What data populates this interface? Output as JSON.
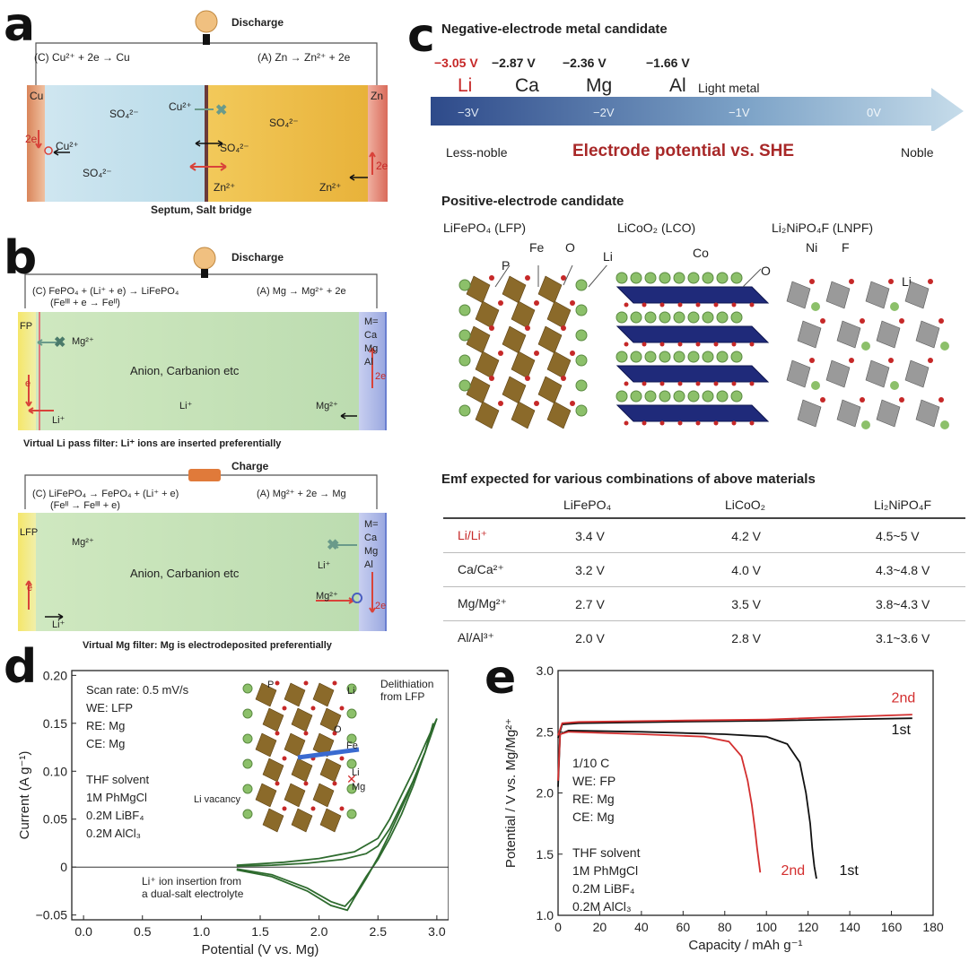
{
  "panel_a": {
    "label": "a",
    "discharge": "Discharge",
    "cathode_reaction": "(C) Cu²⁺ + 2e → Cu",
    "anode_reaction": "(A) Zn → Zn²⁺ + 2e",
    "left_electrode": "Cu",
    "right_electrode": "Zn",
    "sulfate": "SO₄²⁻",
    "cu_ion": "Cu²⁺",
    "zn_ion": "Zn²⁺",
    "electrons": "2e",
    "caption": "Septum, Salt bridge"
  },
  "panel_b": {
    "label": "b",
    "discharge": {
      "title": "Discharge",
      "cathode_reaction": "(C) FePO₄ + (Li⁺ + e) → LiFePO₄",
      "cathode_sub": "(Feᴵᴵᴵ + e → Feᴵᴵ)",
      "anode_reaction": "(A) Mg → Mg²⁺ + 2e",
      "left_electrode": "FP",
      "right_electrode": [
        "M=",
        "Ca",
        "Mg",
        "Al"
      ],
      "electrolyte": "Anion, Carbanion etc",
      "li_ion": "Li⁺",
      "mg_ion": "Mg²⁺",
      "electron": "e",
      "electrons": "2e",
      "caption": "Virtual Li pass filter: Li⁺ ions are inserted preferentially"
    },
    "charge": {
      "title": "Charge",
      "cathode_reaction": "(C) LiFePO₄ → FePO₄ + (Li⁺ + e)",
      "cathode_sub": "(Feᴵᴵ → Feᴵᴵᴵ + e)",
      "anode_reaction": "(A) Mg²⁺ + 2e → Mg",
      "left_electrode": "LFP",
      "right_electrode": [
        "M=",
        "Ca",
        "Mg",
        "Al"
      ],
      "electrolyte": "Anion, Carbanion etc",
      "li_ion": "Li⁺",
      "mg_ion": "Mg²⁺",
      "electron": "e",
      "electrons": "2e",
      "caption": "Virtual Mg filter: Mg is electrodeposited preferentially"
    }
  },
  "panel_c": {
    "label": "c",
    "neg_title": "Negative-electrode metal candidate",
    "metals": [
      {
        "potential": "−3.05 V",
        "symbol": "Li",
        "color": "#c62828"
      },
      {
        "potential": "−2.87 V",
        "symbol": "Ca",
        "color": "#222222"
      },
      {
        "potential": "−2.36 V",
        "symbol": "Mg",
        "color": "#222222"
      },
      {
        "potential": "−1.66 V",
        "symbol": "Al",
        "color": "#222222"
      }
    ],
    "light_metal": "Light metal",
    "scale_ticks": [
      "−3V",
      "−2V",
      "−1V",
      "0V"
    ],
    "less_noble": "Less-noble",
    "noble": "Noble",
    "axis_title": "Electrode potential vs. SHE",
    "pos_title": "Positive-electrode candidate",
    "structures": [
      {
        "name": "LiFePO₄ (LFP)",
        "atoms": [
          "P",
          "Fe",
          "O",
          "Li"
        ]
      },
      {
        "name": "LiCoO₂ (LCO)",
        "atoms": [
          "Co",
          "O"
        ]
      },
      {
        "name": "Li₂NiPO₄F (LNPF)",
        "atoms": [
          "Ni",
          "F",
          "Li"
        ]
      }
    ],
    "emf_title": "Emf expected for various combinations of above materials",
    "emf_columns": [
      "",
      "LiFePO₄",
      "LiCoO₂",
      "Li₂NiPO₄F"
    ],
    "emf_rows": [
      {
        "couple": "Li/Li⁺",
        "values": [
          "3.4 V",
          "4.2 V",
          "4.5~5 V"
        ],
        "highlight": true
      },
      {
        "couple": "Ca/Ca²⁺",
        "values": [
          "3.2 V",
          "4.0 V",
          "4.3~4.8 V"
        ],
        "highlight": false
      },
      {
        "couple": "Mg/Mg²⁺",
        "values": [
          "2.7 V",
          "3.5 V",
          "3.8~4.3 V"
        ],
        "highlight": false
      },
      {
        "couple": "Al/Al³⁺",
        "values": [
          "2.0 V",
          "2.8 V",
          "3.1~3.6 V"
        ],
        "highlight": false
      }
    ]
  },
  "panel_d": {
    "label": "d",
    "conditions": [
      "Scan rate: 0.5 mV/s",
      "WE: LFP",
      "RE: Mg",
      "CE: Mg",
      "",
      "THF solvent",
      "1M PhMgCl",
      "0.2M LiBF₄",
      "0.2M AlCl₃"
    ],
    "inset_labels": {
      "delith": [
        "Delithiation",
        "from LFP"
      ],
      "li": "Li",
      "mg": "Mg",
      "p": "P",
      "o": "O",
      "fe": "Fe",
      "li2": "Li",
      "vacancy": "Li vacancy"
    },
    "insertion_note": [
      "Li⁺ ion insertion from",
      "a dual-salt electrolyte"
    ]
  },
  "panel_e": {
    "label": "e",
    "conditions": [
      "1/10 C",
      "WE: FP",
      "RE: Mg",
      "CE: Mg",
      "",
      "THF solvent",
      "1M PhMgCl",
      "0.2M LiBF₄",
      "0.2M AlCl₃"
    ]
  },
  "chart_data": [
    {
      "type": "line",
      "panel": "d",
      "xlabel": "Potential (V vs. Mg)",
      "ylabel": "Current (A g⁻¹)",
      "xlim": [
        -0.1,
        3.1
      ],
      "ylim": [
        -0.055,
        0.205
      ],
      "xticks": [
        "0.0",
        "0.5",
        "1.0",
        "1.5",
        "2.0",
        "2.5",
        "3.0"
      ],
      "yticks": [
        "−0.05",
        "0",
        "0.05",
        "0.10",
        "0.15",
        "0.20"
      ],
      "series": [
        {
          "color": "#2e6b2e",
          "x": [
            1.3,
            1.6,
            1.9,
            2.2,
            2.4,
            2.5,
            2.6,
            2.7,
            2.8,
            2.9,
            2.97
          ],
          "y": [
            0.001,
            0.002,
            0.004,
            0.008,
            0.014,
            0.022,
            0.04,
            0.065,
            0.09,
            0.12,
            0.15
          ]
        },
        {
          "color": "#2e6b2e",
          "x": [
            2.97,
            2.9,
            2.8,
            2.7,
            2.6,
            2.5,
            2.4,
            2.3,
            2.22,
            2.1,
            1.9,
            1.6,
            1.3
          ],
          "y": [
            0.15,
            0.12,
            0.085,
            0.055,
            0.03,
            0.008,
            -0.01,
            -0.03,
            -0.041,
            -0.036,
            -0.022,
            -0.008,
            -0.002
          ]
        },
        {
          "color": "#2e6b2e",
          "x": [
            1.3,
            1.7,
            2.0,
            2.3,
            2.5,
            2.6,
            2.7,
            2.8,
            2.9,
            3.0
          ],
          "y": [
            0.002,
            0.005,
            0.009,
            0.016,
            0.03,
            0.05,
            0.075,
            0.1,
            0.128,
            0.155
          ]
        },
        {
          "color": "#2e6b2e",
          "x": [
            3.0,
            2.9,
            2.75,
            2.6,
            2.5,
            2.4,
            2.3,
            2.24,
            2.1,
            1.9,
            1.6,
            1.3
          ],
          "y": [
            0.155,
            0.12,
            0.075,
            0.035,
            0.01,
            -0.012,
            -0.032,
            -0.045,
            -0.04,
            -0.025,
            -0.01,
            -0.003
          ]
        }
      ]
    },
    {
      "type": "line",
      "panel": "e",
      "xlabel": "Capacity / mAh g⁻¹",
      "ylabel": "Potential / V vs. Mg/Mg²⁺",
      "xlim": [
        0,
        180
      ],
      "ylim": [
        1.0,
        3.0
      ],
      "xticks": [
        "0",
        "20",
        "40",
        "60",
        "80",
        "100",
        "120",
        "140",
        "160",
        "180"
      ],
      "yticks": [
        "1.0",
        "1.5",
        "2.0",
        "2.5",
        "3.0"
      ],
      "series": [
        {
          "name": "1st",
          "color": "#111111",
          "x": [
            0,
            2,
            10,
            50,
            100,
            170
          ],
          "y": [
            2.45,
            2.56,
            2.57,
            2.58,
            2.59,
            2.61
          ]
        },
        {
          "name": "2nd",
          "color": "#d32f2f",
          "x": [
            0,
            2,
            10,
            50,
            100,
            170
          ],
          "y": [
            2.47,
            2.57,
            2.58,
            2.59,
            2.6,
            2.64
          ]
        },
        {
          "name": "1st",
          "color": "#111111",
          "x": [
            0,
            1,
            5,
            40,
            80,
            100,
            110,
            116,
            119,
            121,
            122,
            123,
            124
          ],
          "y": [
            2.05,
            2.48,
            2.51,
            2.5,
            2.48,
            2.46,
            2.4,
            2.25,
            2.0,
            1.75,
            1.55,
            1.4,
            1.3
          ]
        },
        {
          "name": "2nd",
          "color": "#d32f2f",
          "x": [
            0,
            1,
            5,
            40,
            70,
            82,
            88,
            91,
            93,
            94.5,
            95.5,
            96.5,
            97
          ],
          "y": [
            2.1,
            2.48,
            2.5,
            2.48,
            2.46,
            2.42,
            2.3,
            2.1,
            1.9,
            1.7,
            1.55,
            1.42,
            1.35
          ]
        }
      ],
      "annotations": [
        {
          "text": "2nd",
          "color": "#d32f2f",
          "x": 160,
          "y": 2.74
        },
        {
          "text": "1st",
          "color": "#111111",
          "x": 160,
          "y": 2.48
        },
        {
          "text": "2nd",
          "color": "#d32f2f",
          "x": 107,
          "y": 1.33
        },
        {
          "text": "1st",
          "color": "#111111",
          "x": 135,
          "y": 1.33
        }
      ]
    }
  ]
}
